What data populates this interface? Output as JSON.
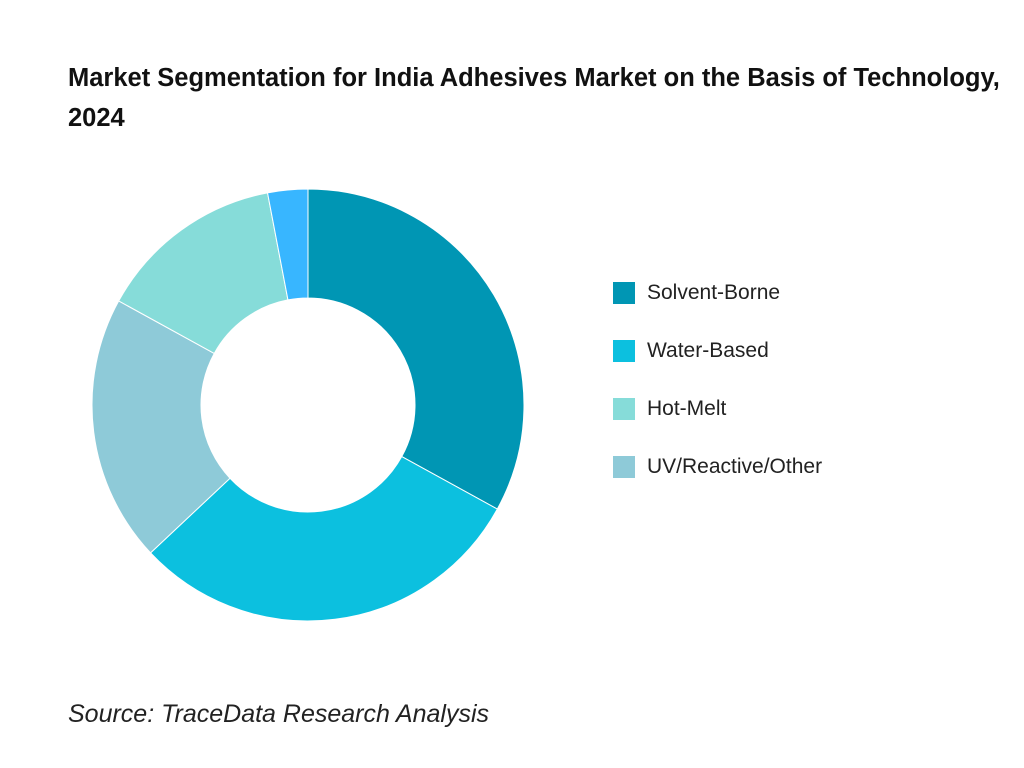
{
  "chart_data": {
    "type": "pie",
    "title": "Market Segmentation for India Adhesives Market on the Basis of Technology, 2024",
    "categories": [
      "Solvent-Borne",
      "Water-Based",
      "Hot-Melt",
      "UV/Reactive/Other"
    ],
    "slices": [
      {
        "label": "Solvent-Borne",
        "value": 33,
        "color": "#0096B4"
      },
      {
        "label": "Water-Based",
        "value": 30,
        "color": "#0CC0DF"
      },
      {
        "label": "UV/Reactive/Other",
        "value": 20,
        "color": "#8ECAD8"
      },
      {
        "label": "Hot-Melt",
        "value": 14,
        "color": "#86DCD9"
      },
      {
        "label": "",
        "value": 3,
        "color": "#38B6FF"
      }
    ],
    "legend": [
      {
        "label": "Solvent-Borne",
        "color": "#0096B4"
      },
      {
        "label": "Water-Based",
        "color": "#0CC0DF"
      },
      {
        "label": "Hot-Melt",
        "color": "#86DCD9"
      },
      {
        "label": "UV/Reactive/Other",
        "color": "#8ECAD8"
      }
    ],
    "legend_position": "right",
    "donut": true
  },
  "source_note": "Source: TraceData Research Analysis"
}
